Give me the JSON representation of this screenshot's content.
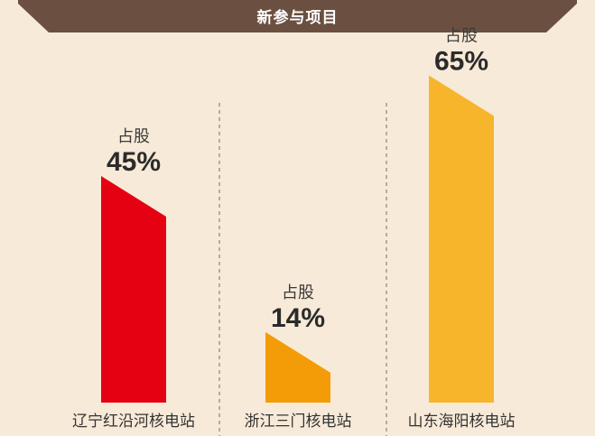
{
  "header": {
    "title": "新参与项目",
    "color": "#6b5042"
  },
  "chart_data": {
    "type": "bar",
    "title": "新参与项目",
    "categories": [
      "辽宁红沿河核电站",
      "浙江三门核电站",
      "山东海阳核电站"
    ],
    "values": [
      45,
      14,
      65
    ],
    "value_labels": [
      "45%",
      "14%",
      "65%"
    ],
    "value_prefix": "占股",
    "ylabel": "",
    "xlabel": "",
    "ylim": [
      0,
      70
    ],
    "unit": "%",
    "colors": [
      "#e50012",
      "#f39c07",
      "#f7b52c"
    ],
    "grid": false,
    "legend": "none"
  }
}
